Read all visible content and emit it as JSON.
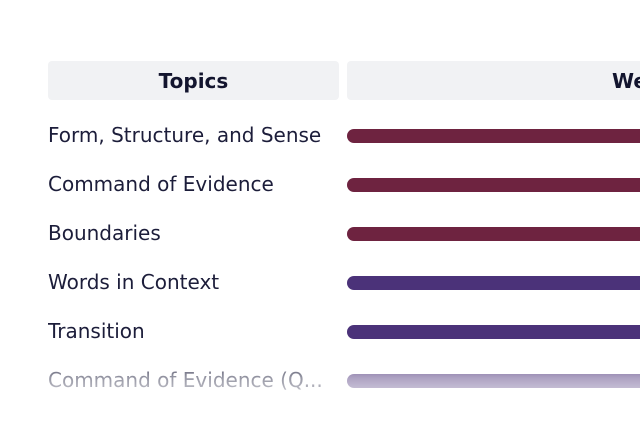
{
  "table": {
    "headers": {
      "topics": "Topics",
      "weight": "We"
    },
    "rows": [
      {
        "topic": "Form, Structure, and Sense",
        "bar_color": "#6e2340"
      },
      {
        "topic": "Command of Evidence",
        "bar_color": "#6e2340"
      },
      {
        "topic": "Boundaries",
        "bar_color": "#6e2340"
      },
      {
        "topic": "Words in Context",
        "bar_color": "#4b3279"
      },
      {
        "topic": "Transition",
        "bar_color": "#4b3279"
      },
      {
        "topic": "Command of Evidence (Q...",
        "bar_color": "#4b3279"
      }
    ]
  }
}
